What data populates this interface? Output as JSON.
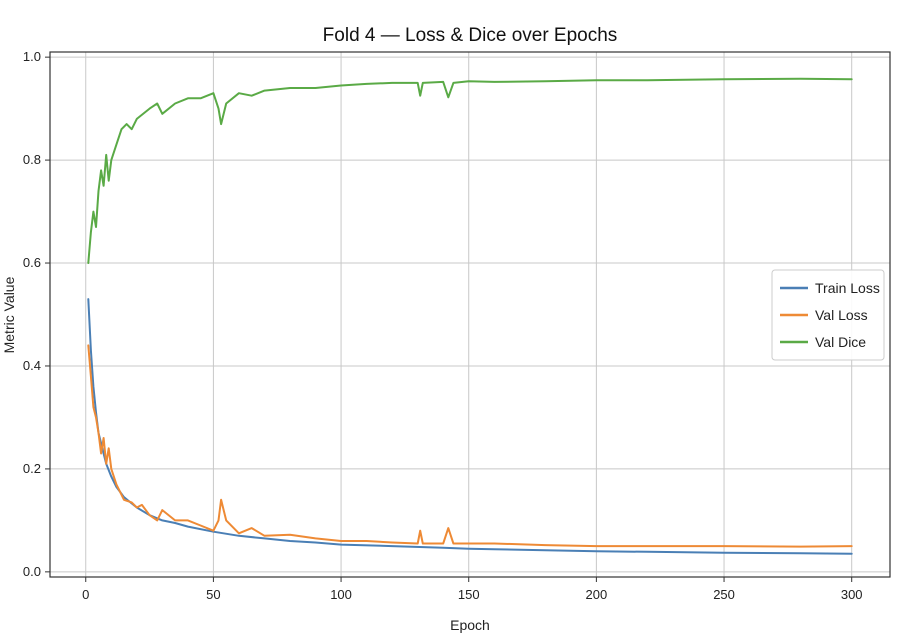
{
  "chart_data": {
    "type": "line",
    "title": "Fold 4 — Loss & Dice over Epochs",
    "xlabel": "Epoch",
    "ylabel": "Metric Value",
    "xlim": [
      -14,
      315
    ],
    "ylim": [
      -0.01,
      1.01
    ],
    "xticks": [
      0,
      50,
      100,
      150,
      200,
      250,
      300
    ],
    "yticks": [
      0.0,
      0.2,
      0.4,
      0.6,
      0.8,
      1.0
    ],
    "xtick_labels": [
      "0",
      "50",
      "100",
      "150",
      "200",
      "250",
      "300"
    ],
    "ytick_labels": [
      "0.0",
      "0.2",
      "0.4",
      "0.6",
      "0.8",
      "1.0"
    ],
    "grid": true,
    "legend_position": "center-right",
    "series": [
      {
        "name": "Train Loss",
        "color": "#4a7fb5",
        "x": [
          1,
          2,
          3,
          4,
          5,
          6,
          7,
          8,
          10,
          12,
          15,
          20,
          25,
          30,
          35,
          40,
          50,
          60,
          70,
          80,
          90,
          100,
          120,
          140,
          150,
          160,
          180,
          200,
          220,
          250,
          280,
          300
        ],
        "y": [
          0.53,
          0.43,
          0.36,
          0.31,
          0.27,
          0.25,
          0.23,
          0.21,
          0.185,
          0.165,
          0.145,
          0.125,
          0.11,
          0.1,
          0.095,
          0.088,
          0.078,
          0.07,
          0.065,
          0.06,
          0.057,
          0.053,
          0.05,
          0.047,
          0.045,
          0.044,
          0.042,
          0.04,
          0.039,
          0.037,
          0.036,
          0.035
        ]
      },
      {
        "name": "Val Loss",
        "color": "#ee8a35",
        "x": [
          1,
          2,
          3,
          4,
          5,
          6,
          7,
          8,
          9,
          10,
          12,
          15,
          18,
          20,
          22,
          25,
          28,
          30,
          35,
          40,
          45,
          50,
          52,
          53,
          55,
          60,
          65,
          70,
          80,
          90,
          100,
          110,
          120,
          130,
          131,
          132,
          140,
          142,
          144,
          150,
          160,
          180,
          200,
          220,
          250,
          280,
          300
        ],
        "y": [
          0.44,
          0.38,
          0.32,
          0.3,
          0.27,
          0.23,
          0.26,
          0.21,
          0.24,
          0.2,
          0.17,
          0.14,
          0.135,
          0.125,
          0.13,
          0.11,
          0.1,
          0.12,
          0.1,
          0.1,
          0.09,
          0.08,
          0.1,
          0.14,
          0.1,
          0.075,
          0.085,
          0.07,
          0.072,
          0.065,
          0.06,
          0.06,
          0.057,
          0.055,
          0.08,
          0.055,
          0.055,
          0.085,
          0.055,
          0.055,
          0.055,
          0.052,
          0.05,
          0.05,
          0.05,
          0.049,
          0.05
        ]
      },
      {
        "name": "Val Dice",
        "color": "#5aaa46",
        "x": [
          1,
          2,
          3,
          4,
          5,
          6,
          7,
          8,
          9,
          10,
          12,
          14,
          16,
          18,
          20,
          25,
          28,
          30,
          35,
          40,
          45,
          50,
          52,
          53,
          55,
          60,
          65,
          70,
          80,
          90,
          100,
          110,
          120,
          130,
          131,
          132,
          140,
          142,
          144,
          150,
          160,
          180,
          200,
          220,
          250,
          280,
          300
        ],
        "y": [
          0.6,
          0.66,
          0.7,
          0.67,
          0.74,
          0.78,
          0.75,
          0.81,
          0.76,
          0.8,
          0.83,
          0.86,
          0.87,
          0.86,
          0.88,
          0.9,
          0.91,
          0.89,
          0.91,
          0.92,
          0.92,
          0.93,
          0.9,
          0.87,
          0.91,
          0.93,
          0.925,
          0.935,
          0.94,
          0.94,
          0.945,
          0.948,
          0.95,
          0.95,
          0.925,
          0.95,
          0.952,
          0.922,
          0.95,
          0.953,
          0.952,
          0.953,
          0.955,
          0.955,
          0.957,
          0.958,
          0.957
        ]
      }
    ]
  }
}
